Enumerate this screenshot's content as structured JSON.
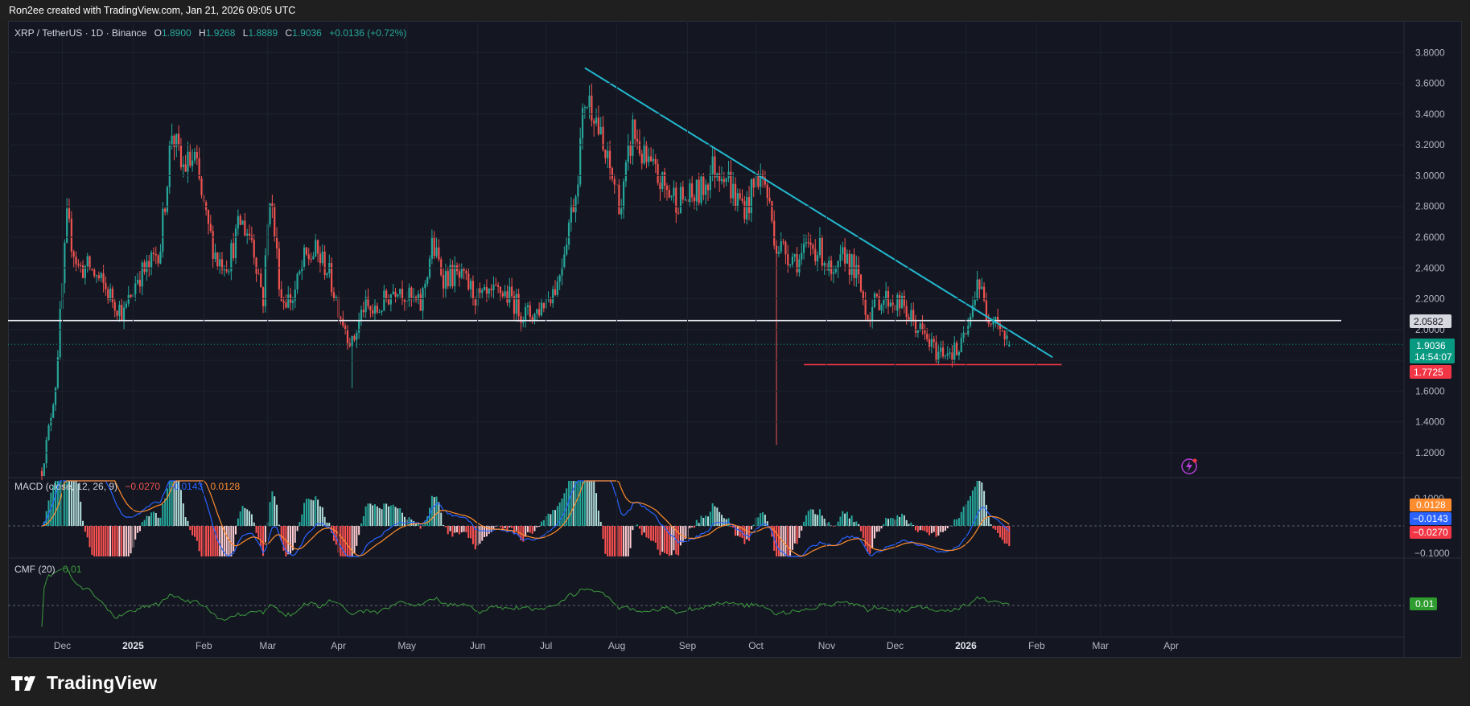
{
  "header": {
    "credit": "Ron2ee created with TradingView.com, Jan 21, 2026 09:05 UTC"
  },
  "legend": {
    "symbol": "XRP / TetherUS · 1D · Binance",
    "o_label": "O",
    "o": "1.8900",
    "h_label": "H",
    "h": "1.9268",
    "l_label": "L",
    "l": "1.8889",
    "c_label": "C",
    "c": "1.9036",
    "change": "+0.0136 (+0.72%)"
  },
  "macd": {
    "title": "MACD (close, 12, 26, 9)",
    "macd": "−0.0270",
    "signal": "−0.0143",
    "hist": "0.0128"
  },
  "cmf": {
    "title": "CMF (20)",
    "value": "0.01"
  },
  "labels": {
    "resistance": "2.0582",
    "price": "1.9036",
    "countdown": "14:54:07",
    "support": "1.7725",
    "macd_hist": "0.0128",
    "macd_signal": "−0.0143",
    "macd_line": "−0.0270",
    "cmf": "0.01",
    "macd_axis_top": "0.1000",
    "macd_axis_bottom": "−0.1000"
  },
  "colors": {
    "up": "#26a69a",
    "down": "#ef5350",
    "trendline": "#22b8cf",
    "support": "#f23645",
    "resistance": "#e8e8f0",
    "macd": "#2962ff",
    "signal": "#ff8c2e",
    "cmf": "#3c9a3c",
    "bg": "#141722"
  },
  "brand": {
    "name": "TradingView"
  },
  "chart_data": {
    "type": "candlestick",
    "title": "XRP / TetherUS · 1D · Binance",
    "y_axis": {
      "ticks": [
        "3.8000",
        "3.6000",
        "3.4000",
        "3.2000",
        "3.0000",
        "2.8000",
        "2.6000",
        "2.4000",
        "2.2000",
        "2.0000",
        "1.8000",
        "1.6000",
        "1.4000",
        "1.2000"
      ],
      "range": [
        1.08,
        3.9
      ]
    },
    "x_axis": {
      "ticks": [
        "Dec",
        "2025",
        "Feb",
        "Mar",
        "Apr",
        "May",
        "Jun",
        "Jul",
        "Aug",
        "Sep",
        "Oct",
        "Nov",
        "Dec",
        "2026",
        "Feb",
        "Mar",
        "Apr"
      ]
    },
    "price_path": [
      [
        "2024-11-22",
        1.08
      ],
      [
        "2024-11-25",
        1.35
      ],
      [
        "2024-11-28",
        1.65
      ],
      [
        "2024-12-03",
        2.7
      ],
      [
        "2024-12-08",
        2.4
      ],
      [
        "2024-12-13",
        2.4
      ],
      [
        "2024-12-18",
        2.3
      ],
      [
        "2024-12-23",
        2.2
      ],
      [
        "2024-12-28",
        2.1
      ],
      [
        "2025-01-03",
        2.35
      ],
      [
        "2025-01-08",
        2.4
      ],
      [
        "2025-01-13",
        2.55
      ],
      [
        "2025-01-16",
        3.0
      ],
      [
        "2025-01-18",
        3.3
      ],
      [
        "2025-01-22",
        3.05
      ],
      [
        "2025-01-28",
        3.1
      ],
      [
        "2025-02-02",
        2.7
      ],
      [
        "2025-02-07",
        2.45
      ],
      [
        "2025-02-12",
        2.45
      ],
      [
        "2025-02-17",
        2.7
      ],
      [
        "2025-02-22",
        2.6
      ],
      [
        "2025-02-27",
        2.2
      ],
      [
        "2025-03-02",
        2.9
      ],
      [
        "2025-03-07",
        2.2
      ],
      [
        "2025-03-12",
        2.2
      ],
      [
        "2025-03-17",
        2.45
      ],
      [
        "2025-03-22",
        2.5
      ],
      [
        "2025-03-27",
        2.4
      ],
      [
        "2025-04-02",
        2.1
      ],
      [
        "2025-04-07",
        1.9
      ],
      [
        "2025-04-12",
        2.15
      ],
      [
        "2025-04-17",
        2.1
      ],
      [
        "2025-04-22",
        2.2
      ],
      [
        "2025-04-27",
        2.3
      ],
      [
        "2025-05-02",
        2.2
      ],
      [
        "2025-05-07",
        2.15
      ],
      [
        "2025-05-12",
        2.55
      ],
      [
        "2025-05-17",
        2.35
      ],
      [
        "2025-05-22",
        2.35
      ],
      [
        "2025-05-27",
        2.3
      ],
      [
        "2025-06-01",
        2.2
      ],
      [
        "2025-06-06",
        2.2
      ],
      [
        "2025-06-11",
        2.25
      ],
      [
        "2025-06-16",
        2.2
      ],
      [
        "2025-06-21",
        2.1
      ],
      [
        "2025-06-26",
        2.1
      ],
      [
        "2025-07-01",
        2.2
      ],
      [
        "2025-07-06",
        2.3
      ],
      [
        "2025-07-11",
        2.7
      ],
      [
        "2025-07-14",
        2.9
      ],
      [
        "2025-07-18",
        3.5
      ],
      [
        "2025-07-22",
        3.45
      ],
      [
        "2025-07-26",
        3.15
      ],
      [
        "2025-07-31",
        2.95
      ],
      [
        "2025-08-03",
        2.8
      ],
      [
        "2025-08-08",
        3.3
      ],
      [
        "2025-08-13",
        3.1
      ],
      [
        "2025-08-18",
        3.0
      ],
      [
        "2025-08-23",
        2.9
      ],
      [
        "2025-08-28",
        2.85
      ],
      [
        "2025-09-02",
        2.85
      ],
      [
        "2025-09-07",
        2.9
      ],
      [
        "2025-09-12",
        3.05
      ],
      [
        "2025-09-17",
        3.05
      ],
      [
        "2025-09-22",
        2.85
      ],
      [
        "2025-09-27",
        2.8
      ],
      [
        "2025-10-02",
        3.0
      ],
      [
        "2025-10-05",
        2.95
      ],
      [
        "2025-10-10",
        2.55
      ],
      [
        "2025-10-15",
        2.5
      ],
      [
        "2025-10-20",
        2.45
      ],
      [
        "2025-10-25",
        2.55
      ],
      [
        "2025-10-30",
        2.5
      ],
      [
        "2025-11-04",
        2.3
      ],
      [
        "2025-11-09",
        2.5
      ],
      [
        "2025-11-14",
        2.35
      ],
      [
        "2025-11-19",
        2.1
      ],
      [
        "2025-11-24",
        2.2
      ],
      [
        "2025-11-29",
        2.2
      ],
      [
        "2025-12-04",
        2.15
      ],
      [
        "2025-12-09",
        2.05
      ],
      [
        "2025-12-14",
        1.95
      ],
      [
        "2025-12-19",
        1.85
      ],
      [
        "2025-12-24",
        1.87
      ],
      [
        "2025-12-29",
        1.85
      ],
      [
        "2026-01-03",
        2.05
      ],
      [
        "2026-01-06",
        2.35
      ],
      [
        "2026-01-10",
        2.1
      ],
      [
        "2026-01-14",
        2.1
      ],
      [
        "2026-01-18",
        1.95
      ],
      [
        "2026-01-21",
        1.9036
      ]
    ],
    "spikes": [
      [
        "2025-10-10",
        1.25
      ],
      [
        "2025-04-07",
        1.62
      ]
    ],
    "trendline": {
      "from": [
        "2025-07-18",
        3.7
      ],
      "to": [
        "2026-02-08",
        1.82
      ]
    },
    "support": {
      "price": 1.7725,
      "from": "2025-10-22",
      "to": "2026-02-12"
    },
    "resistance": {
      "price": 2.0582
    }
  }
}
